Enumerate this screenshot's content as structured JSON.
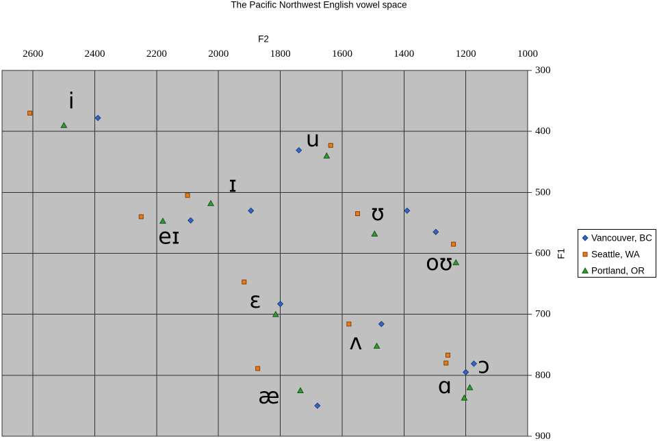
{
  "chart_data": {
    "type": "scatter",
    "title": "The Pacific Northwest English vowel space",
    "xlabel": "F2",
    "ylabel": "F1",
    "xlim": [
      2700,
      1000
    ],
    "ylim": [
      300,
      900
    ],
    "x_reversed": true,
    "y_reversed": true,
    "x_ticks": [
      2600,
      2400,
      2200,
      2000,
      1800,
      1600,
      1400,
      1200,
      1000
    ],
    "y_ticks": [
      300,
      400,
      500,
      600,
      700,
      800,
      900
    ],
    "grid": true,
    "plot_bg_color": "#c0c0c0",
    "grid_color": "#303030",
    "legend_position": "right",
    "series": [
      {
        "name": "Vancouver, BC",
        "marker": "diamond",
        "color": "#3366cc",
        "edge_color": "#1c3c7a",
        "points": [
          {
            "vowel": "i",
            "f2": 2390,
            "f1": 378
          },
          {
            "vowel": "u",
            "f2": 1740,
            "f1": 431
          },
          {
            "vowel": "ɪ",
            "f2": 1895,
            "f1": 530
          },
          {
            "vowel": "eɪ",
            "f2": 2090,
            "f1": 546
          },
          {
            "vowel": "ʊ",
            "f2": 1390,
            "f1": 530
          },
          {
            "vowel": "oʊ",
            "f2": 1297,
            "f1": 565
          },
          {
            "vowel": "ɛ",
            "f2": 1800,
            "f1": 683
          },
          {
            "vowel": "ʌ",
            "f2": 1473,
            "f1": 716
          },
          {
            "vowel": "æ",
            "f2": 1680,
            "f1": 850
          },
          {
            "vowel": "ɑ",
            "f2": 1200,
            "f1": 795
          },
          {
            "vowel": "ɔ",
            "f2": 1174,
            "f1": 781
          }
        ]
      },
      {
        "name": "Seattle, WA",
        "marker": "square",
        "color": "#e97a16",
        "edge_color": "#80400a",
        "points": [
          {
            "vowel": "i",
            "f2": 2610,
            "f1": 370
          },
          {
            "vowel": "u",
            "f2": 1637,
            "f1": 423
          },
          {
            "vowel": "ɪ",
            "f2": 2100,
            "f1": 505
          },
          {
            "vowel": "eɪ",
            "f2": 2250,
            "f1": 540
          },
          {
            "vowel": "ʊ",
            "f2": 1550,
            "f1": 535
          },
          {
            "vowel": "oʊ",
            "f2": 1240,
            "f1": 585
          },
          {
            "vowel": "ɛ",
            "f2": 1917,
            "f1": 647
          },
          {
            "vowel": "ʌ",
            "f2": 1578,
            "f1": 716
          },
          {
            "vowel": "æ",
            "f2": 1873,
            "f1": 789
          },
          {
            "vowel": "ɑ",
            "f2": 1264,
            "f1": 780
          },
          {
            "vowel": "ɔ",
            "f2": 1258,
            "f1": 767
          }
        ]
      },
      {
        "name": "Portland, OR",
        "marker": "triangle",
        "color": "#2ca02c",
        "edge_color": "#14521c",
        "points": [
          {
            "vowel": "i",
            "f2": 2500,
            "f1": 390
          },
          {
            "vowel": "u",
            "f2": 1650,
            "f1": 440
          },
          {
            "vowel": "ɪ",
            "f2": 2025,
            "f1": 518
          },
          {
            "vowel": "eɪ",
            "f2": 2180,
            "f1": 547
          },
          {
            "vowel": "ʊ",
            "f2": 1495,
            "f1": 568
          },
          {
            "vowel": "oʊ",
            "f2": 1232,
            "f1": 615
          },
          {
            "vowel": "ɛ",
            "f2": 1815,
            "f1": 700
          },
          {
            "vowel": "ʌ",
            "f2": 1488,
            "f1": 752
          },
          {
            "vowel": "æ",
            "f2": 1735,
            "f1": 825
          },
          {
            "vowel": "ɑ",
            "f2": 1187,
            "f1": 820
          },
          {
            "vowel": "ɔ",
            "f2": 1205,
            "f1": 837
          }
        ]
      }
    ],
    "annotations": [
      {
        "text": "i",
        "f2": 2476,
        "f1": 350
      },
      {
        "text": "u",
        "f2": 1695,
        "f1": 412
      },
      {
        "text": "ɪ",
        "f2": 1954,
        "f1": 487
      },
      {
        "text": "eɪ",
        "f2": 2160,
        "f1": 572
      },
      {
        "text": "ʊ",
        "f2": 1485,
        "f1": 533
      },
      {
        "text": "oʊ",
        "f2": 1286,
        "f1": 615
      },
      {
        "text": "ɛ",
        "f2": 1881,
        "f1": 677
      },
      {
        "text": "ʌ",
        "f2": 1556,
        "f1": 745
      },
      {
        "text": "æ",
        "f2": 1837,
        "f1": 834
      },
      {
        "text": "ɑ",
        "f2": 1268,
        "f1": 817
      },
      {
        "text": "ɔ",
        "f2": 1142,
        "f1": 784
      }
    ]
  }
}
